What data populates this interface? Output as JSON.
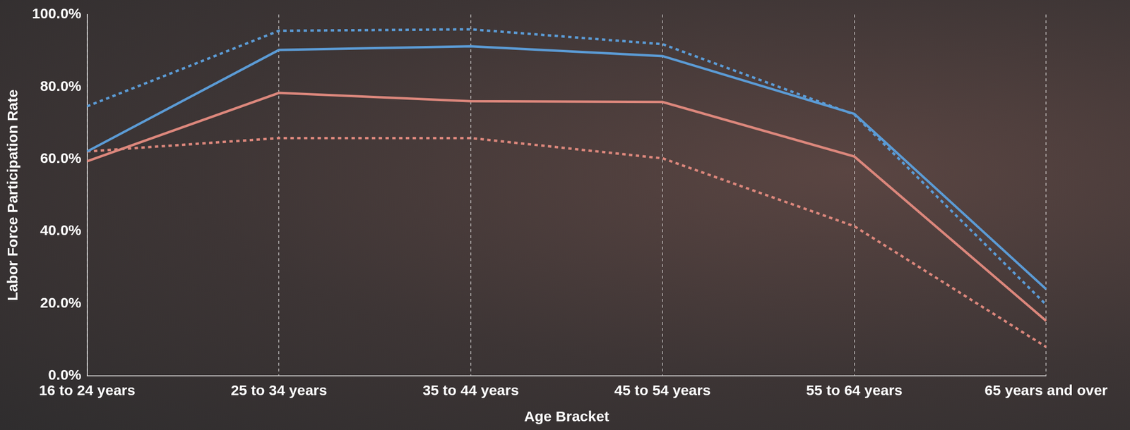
{
  "chart_data": {
    "type": "line",
    "x_label": "Age Bracket",
    "y_label": "Labor Force Participation Rate",
    "categories": [
      "16 to 24 years",
      "25 to 34 years",
      "35 to 44 years",
      "45 to 54 years",
      "55 to 64 years",
      "65 years and over"
    ],
    "series": [
      {
        "color": "#5b9bd5",
        "line_style": "dotted",
        "values": [
          74.6,
          95.5,
          95.9,
          91.8,
          72.3,
          19.7
        ]
      },
      {
        "color": "#5b9bd5",
        "line_style": "solid",
        "values": [
          62.1,
          90.2,
          91.2,
          88.5,
          72.5,
          24.0
        ]
      },
      {
        "color": "#dc877c",
        "line_style": "solid",
        "values": [
          59.4,
          78.3,
          76.0,
          75.8,
          60.7,
          15.2
        ]
      },
      {
        "color": "#dc877c",
        "line_style": "dotted",
        "values": [
          62.1,
          65.8,
          65.8,
          60.2,
          41.4,
          8.0
        ]
      }
    ],
    "ylim": [
      0,
      100
    ],
    "yticks": [
      {
        "value": 0,
        "label": "0.0%"
      },
      {
        "value": 20,
        "label": "20.0%"
      },
      {
        "value": 40,
        "label": "40.0%"
      },
      {
        "value": 60,
        "label": "60.0%"
      },
      {
        "value": 80,
        "label": "80.0%"
      },
      {
        "value": 100,
        "label": "100.0%"
      }
    ],
    "grid": true
  }
}
